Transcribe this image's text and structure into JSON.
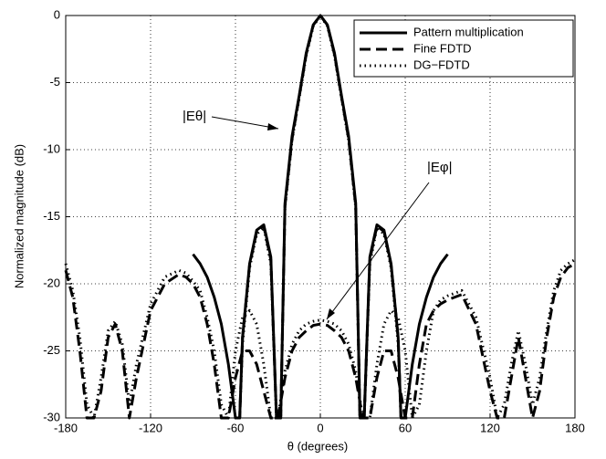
{
  "chart_data": {
    "type": "line",
    "xlabel": "θ (degrees)",
    "ylabel": "Normalized magnitude (dB)",
    "xlim": [
      -180,
      180
    ],
    "ylim": [
      -30,
      0
    ],
    "xticks": [
      -180,
      -120,
      -60,
      0,
      60,
      120,
      180
    ],
    "yticks": [
      -30,
      -25,
      -20,
      -15,
      -10,
      -5,
      0
    ],
    "grid": true,
    "legend": "upper right",
    "annotations": [
      "|Eθ|",
      "|Eφ|"
    ],
    "series": [
      {
        "name": "Pattern multiplication",
        "color": "#000000",
        "dash": "solid",
        "x": [
          -90,
          -85,
          -80,
          -75,
          -70,
          -65,
          -60,
          -57,
          -55,
          -50,
          -45,
          -40,
          -35,
          -31,
          -28,
          -25,
          -20,
          -15,
          -10,
          -5,
          0,
          5,
          10,
          15,
          20,
          25,
          28,
          31,
          35,
          40,
          45,
          50,
          55,
          57,
          60,
          65,
          70,
          75,
          80,
          85,
          90
        ],
        "values": [
          -17.8,
          -18.5,
          -19.5,
          -21,
          -23,
          -26,
          -30,
          -30,
          -24,
          -18.5,
          -16,
          -15.6,
          -18,
          -30,
          -30,
          -14,
          -9,
          -6,
          -2.8,
          -0.7,
          0,
          -0.7,
          -2.8,
          -6,
          -9,
          -14,
          -30,
          -30,
          -18,
          -15.6,
          -16,
          -18.5,
          -24,
          -30,
          -30,
          -26,
          -23,
          -21,
          -19.5,
          -18.5,
          -17.8
        ]
      },
      {
        "name": "Fine FDTD",
        "color": "#000000",
        "dash": "dashed",
        "x": [
          -60,
          -57,
          -55,
          -50,
          -45,
          -40,
          -35,
          -31,
          -28,
          -25,
          -20,
          -15,
          -10,
          -5,
          0,
          5,
          10,
          15,
          20,
          25,
          28,
          31,
          35,
          40,
          45,
          50,
          55,
          57,
          60,
          null,
          -180,
          -175,
          -170,
          -165,
          -160,
          -155,
          -150,
          -145,
          -140,
          -135,
          -130,
          -120,
          -110,
          -100,
          -95,
          -90,
          -85,
          -80,
          -75,
          -70,
          -65,
          -60,
          -55,
          -50,
          -45,
          -40,
          -35,
          -30,
          -25,
          -20,
          -15,
          -10,
          -5,
          0,
          5,
          10,
          15,
          20,
          25,
          30,
          35,
          40,
          45,
          50,
          55,
          60,
          65,
          70,
          75,
          80,
          85,
          90,
          100,
          110,
          120,
          125,
          130,
          135,
          140,
          145,
          150,
          155,
          160,
          165,
          170,
          175,
          180
        ],
        "values": [
          -30,
          -30,
          -24,
          -18.6,
          -16.1,
          -15.7,
          -18.2,
          -30,
          -30,
          -14.2,
          -9.2,
          -6.1,
          -2.9,
          -0.7,
          0,
          -0.7,
          -2.9,
          -6.1,
          -9.2,
          -14.2,
          -30,
          -30,
          -18.2,
          -15.7,
          -16.1,
          -18.6,
          -24,
          -30,
          -30,
          null,
          -19,
          -21,
          -25,
          -30,
          -30,
          -28,
          -24,
          -23,
          -25,
          -30,
          -27,
          -22,
          -20,
          -19.3,
          -19.5,
          -20,
          -21,
          -23,
          -26,
          -30,
          -30,
          -27,
          -25,
          -25,
          -26,
          -28,
          -30,
          -30,
          -27,
          -25,
          -24,
          -23.5,
          -23.1,
          -23,
          -23.1,
          -23.5,
          -24,
          -25,
          -27,
          -30,
          -30,
          -27,
          -25,
          -25,
          -27,
          -30,
          -30,
          -26,
          -23,
          -22,
          -21.5,
          -21.2,
          -20.8,
          -23,
          -28,
          -30,
          -30,
          -27,
          -24,
          -27,
          -30,
          -28,
          -24,
          -21,
          -19.5,
          -18.8,
          -18.5
        ]
      },
      {
        "name": "DG−FDTD",
        "color": "#000000",
        "dash": "dotted",
        "x": [
          -60,
          -57,
          -55,
          -50,
          -45,
          -40,
          -35,
          -31,
          -28,
          -25,
          -20,
          -15,
          -10,
          -5,
          0,
          5,
          10,
          15,
          20,
          25,
          28,
          31,
          35,
          40,
          45,
          50,
          55,
          57,
          60,
          null,
          -180,
          -175,
          -170,
          -165,
          -160,
          -155,
          -150,
          -145,
          -140,
          -135,
          -130,
          -120,
          -110,
          -100,
          -95,
          -90,
          -85,
          -80,
          -75,
          -70,
          -65,
          -60,
          -55,
          -50,
          -45,
          -40,
          -35,
          -30,
          -25,
          -20,
          -15,
          -10,
          -5,
          0,
          5,
          10,
          15,
          20,
          25,
          30,
          35,
          40,
          45,
          50,
          55,
          60,
          65,
          70,
          75,
          80,
          85,
          90,
          100,
          110,
          120,
          125,
          130,
          135,
          140,
          145,
          150,
          155,
          160,
          165,
          170,
          175,
          180
        ],
        "values": [
          -30,
          -30,
          -24.5,
          -18.8,
          -16.3,
          -15.8,
          -18.5,
          -30,
          -30,
          -14.3,
          -9.3,
          -6.2,
          -3,
          -0.8,
          0,
          -0.8,
          -3,
          -6.2,
          -9.3,
          -14.3,
          -30,
          -30,
          -18.5,
          -15.8,
          -16.3,
          -18.8,
          -24.5,
          -30,
          -30,
          null,
          -18.5,
          -20.5,
          -24,
          -29,
          -30,
          -27,
          -23.5,
          -22.8,
          -24.5,
          -29,
          -26,
          -21.5,
          -19.5,
          -19,
          -19.2,
          -19.8,
          -20.5,
          -22.5,
          -25,
          -29,
          -30,
          -25,
          -22.5,
          -22,
          -23,
          -26,
          -30,
          -30,
          -26.5,
          -24.5,
          -23.5,
          -23,
          -22.8,
          -22.7,
          -22.8,
          -23,
          -23.5,
          -24.5,
          -26.5,
          -30,
          -30,
          -26,
          -23,
          -22,
          -22.5,
          -25,
          -30,
          -29,
          -25,
          -22,
          -21.2,
          -20.9,
          -20.5,
          -22.5,
          -27,
          -30,
          -29,
          -26,
          -23.5,
          -26,
          -29,
          -27,
          -23.5,
          -20.5,
          -19,
          -18.5,
          -18.2
        ]
      }
    ]
  }
}
